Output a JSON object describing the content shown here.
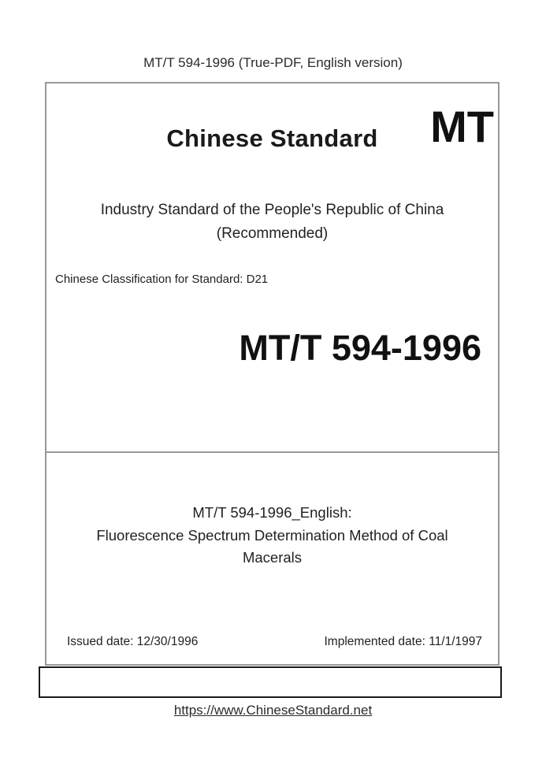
{
  "header": {
    "text": "MT/T 594-1996 (True-PDF, English version)"
  },
  "cover": {
    "brand_title": "Chinese Standard",
    "brand_code": "MT",
    "subtitle_line1": "Industry Standard of the People's Republic of China",
    "subtitle_line2": "(Recommended)",
    "classification": "Chinese Classification for Standard: D21",
    "standard_number": "MT/T 594-1996",
    "title_line1": "MT/T 594-1996_English:",
    "title_line2": "Fluorescence Spectrum Determination Method of Coal",
    "title_line3": "Macerals",
    "issued_date": "Issued date: 12/30/1996",
    "implemented_date": "Implemented date: 11/1/1997"
  },
  "footer": {
    "link_text": "https://www.ChineseStandard.net"
  },
  "colors": {
    "box_border_gray": "#999999",
    "box_border_dark": "#1a1a1a",
    "text": "#262626"
  }
}
